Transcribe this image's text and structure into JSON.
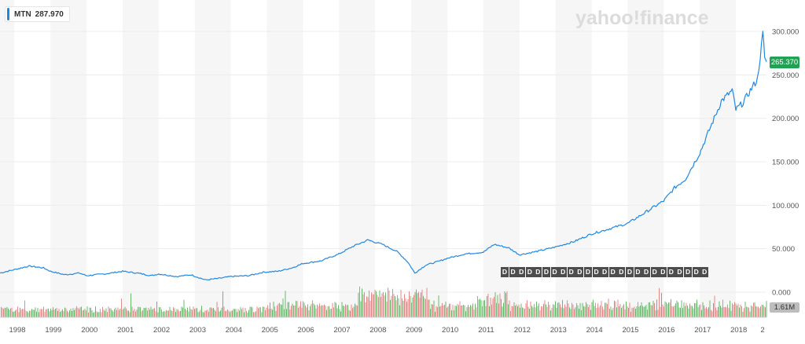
{
  "brand": {
    "watermark": "yahoo!finance"
  },
  "legend": {
    "symbol": "MTN",
    "value": "287.970",
    "color": "#1e88e5"
  },
  "tags": {
    "price": "265.370",
    "volume": "1.61M",
    "price_color": "#21a252"
  },
  "dividends": {
    "marker": "D",
    "count": 25
  },
  "chart_data": {
    "type": "line",
    "title": "",
    "xlabel": "",
    "ylabel": "",
    "x_ticks": [
      "1998",
      "1999",
      "2000",
      "2001",
      "2002",
      "2003",
      "2004",
      "2005",
      "2006",
      "2007",
      "2008",
      "2009",
      "2010",
      "2011",
      "2012",
      "2013",
      "2014",
      "2015",
      "2016",
      "2017",
      "2018",
      "2"
    ],
    "y_ticks": [
      "0.000",
      "50.000",
      "100.000",
      "150.000",
      "200.000",
      "250.000",
      "300.000"
    ],
    "ylim": [
      0,
      300
    ],
    "xlim": [
      1997.6,
      2018.85
    ],
    "grid": "alternating vertical bands by year",
    "series": [
      {
        "color": "#1e88e5",
        "x": [
          1997.6,
          1998.0,
          1998.4,
          1998.8,
          1999.0,
          1999.4,
          1999.8,
          2000.0,
          2000.5,
          2001.0,
          2001.4,
          2001.8,
          2002.0,
          2002.5,
          2002.9,
          2003.3,
          2003.7,
          2004.0,
          2004.5,
          2004.9,
          2005.3,
          2005.7,
          2006.0,
          2006.5,
          2007.0,
          2007.4,
          2007.8,
          2008.2,
          2008.6,
          2008.9,
          2009.1,
          2009.4,
          2009.8,
          2010.0,
          2010.5,
          2011.0,
          2011.3,
          2011.7,
          2012.0,
          2012.5,
          2013.0,
          2013.5,
          2014.0,
          2014.5,
          2015.0,
          2015.5,
          2016.0,
          2016.3,
          2016.6,
          2017.0,
          2017.3,
          2017.6,
          2017.9,
          2018.0,
          2018.2,
          2018.4,
          2018.6,
          2018.75,
          2018.8,
          2018.85
        ],
        "values": [
          22,
          26,
          30,
          28,
          24,
          20,
          22,
          19,
          21,
          24,
          22,
          19,
          21,
          18,
          20,
          14,
          16,
          18,
          19,
          23,
          24,
          28,
          33,
          36,
          44,
          53,
          60,
          55,
          47,
          35,
          22,
          31,
          36,
          39,
          44,
          46,
          55,
          51,
          43,
          47,
          52,
          58,
          67,
          73,
          79,
          92,
          105,
          120,
          130,
          160,
          190,
          220,
          232,
          210,
          218,
          232,
          245,
          297,
          270,
          265
        ]
      }
    ],
    "volume": {
      "label": "1.61M",
      "colors": [
        "#e57373",
        "#4caf50"
      ]
    }
  }
}
